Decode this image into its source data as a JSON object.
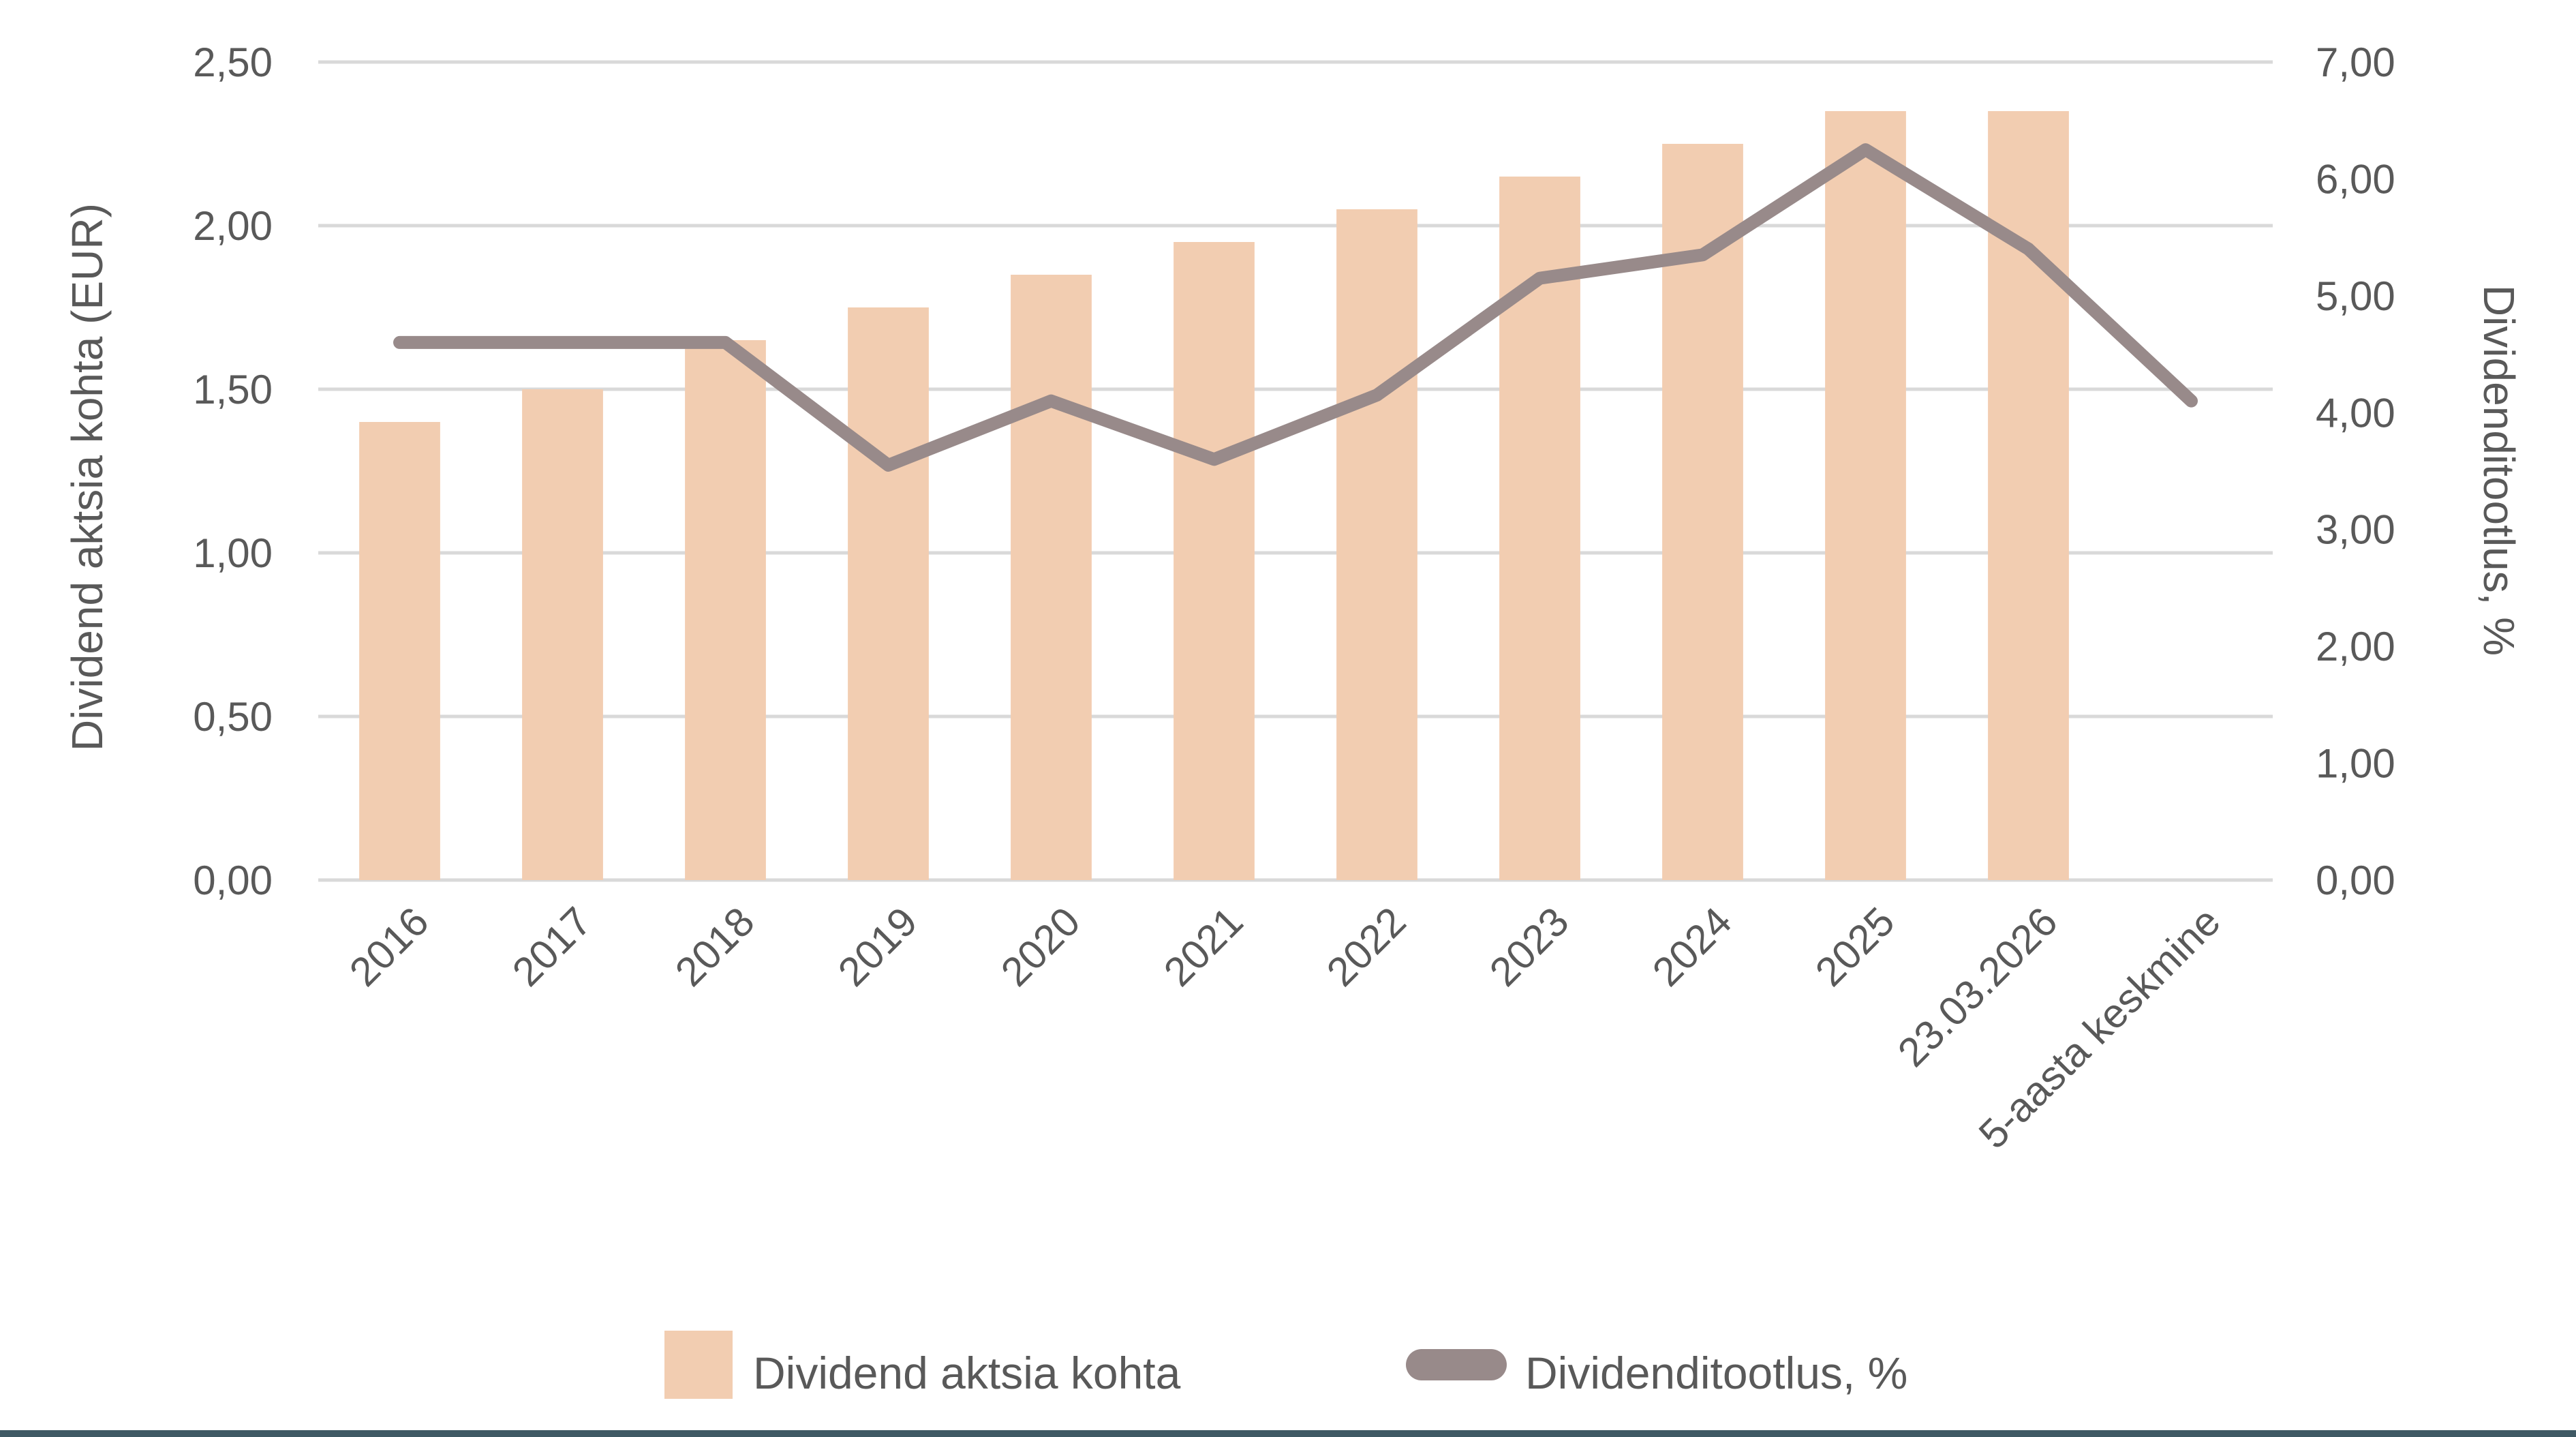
{
  "chart_data": {
    "type": "combo",
    "categories": [
      "2016",
      "2017",
      "2018",
      "2019",
      "2020",
      "2021",
      "2022",
      "2023",
      "2024",
      "2025",
      "23.03.2026",
      "5-aasta keskmine"
    ],
    "series": [
      {
        "name": "Dividend aktsia kohta",
        "type": "bar",
        "axis": "left",
        "color": "#F2CDB1",
        "values": [
          1.4,
          1.5,
          1.65,
          1.75,
          1.85,
          1.95,
          2.05,
          2.15,
          2.25,
          2.35,
          2.35,
          null
        ]
      },
      {
        "name": "Dividenditootlus, %",
        "type": "line",
        "axis": "right",
        "color": "#988A8A",
        "values": [
          4.6,
          4.6,
          4.6,
          3.55,
          4.1,
          3.6,
          4.15,
          5.15,
          5.35,
          6.25,
          5.4,
          4.1
        ]
      }
    ],
    "left_axis": {
      "title": "Dividend aktsia kohta (EUR)",
      "min": 0,
      "max": 2.5,
      "step": 0.5
    },
    "right_axis": {
      "title": "Dividenditootlus, %",
      "min": 0,
      "max": 7,
      "step": 1
    },
    "grid": true,
    "legend_position": "bottom",
    "decimal_separator": ","
  },
  "colors": {
    "gridline": "#D9D9D9",
    "text": "#595959",
    "background": "#FFFFFF",
    "bottom_border": "#3F5964"
  }
}
